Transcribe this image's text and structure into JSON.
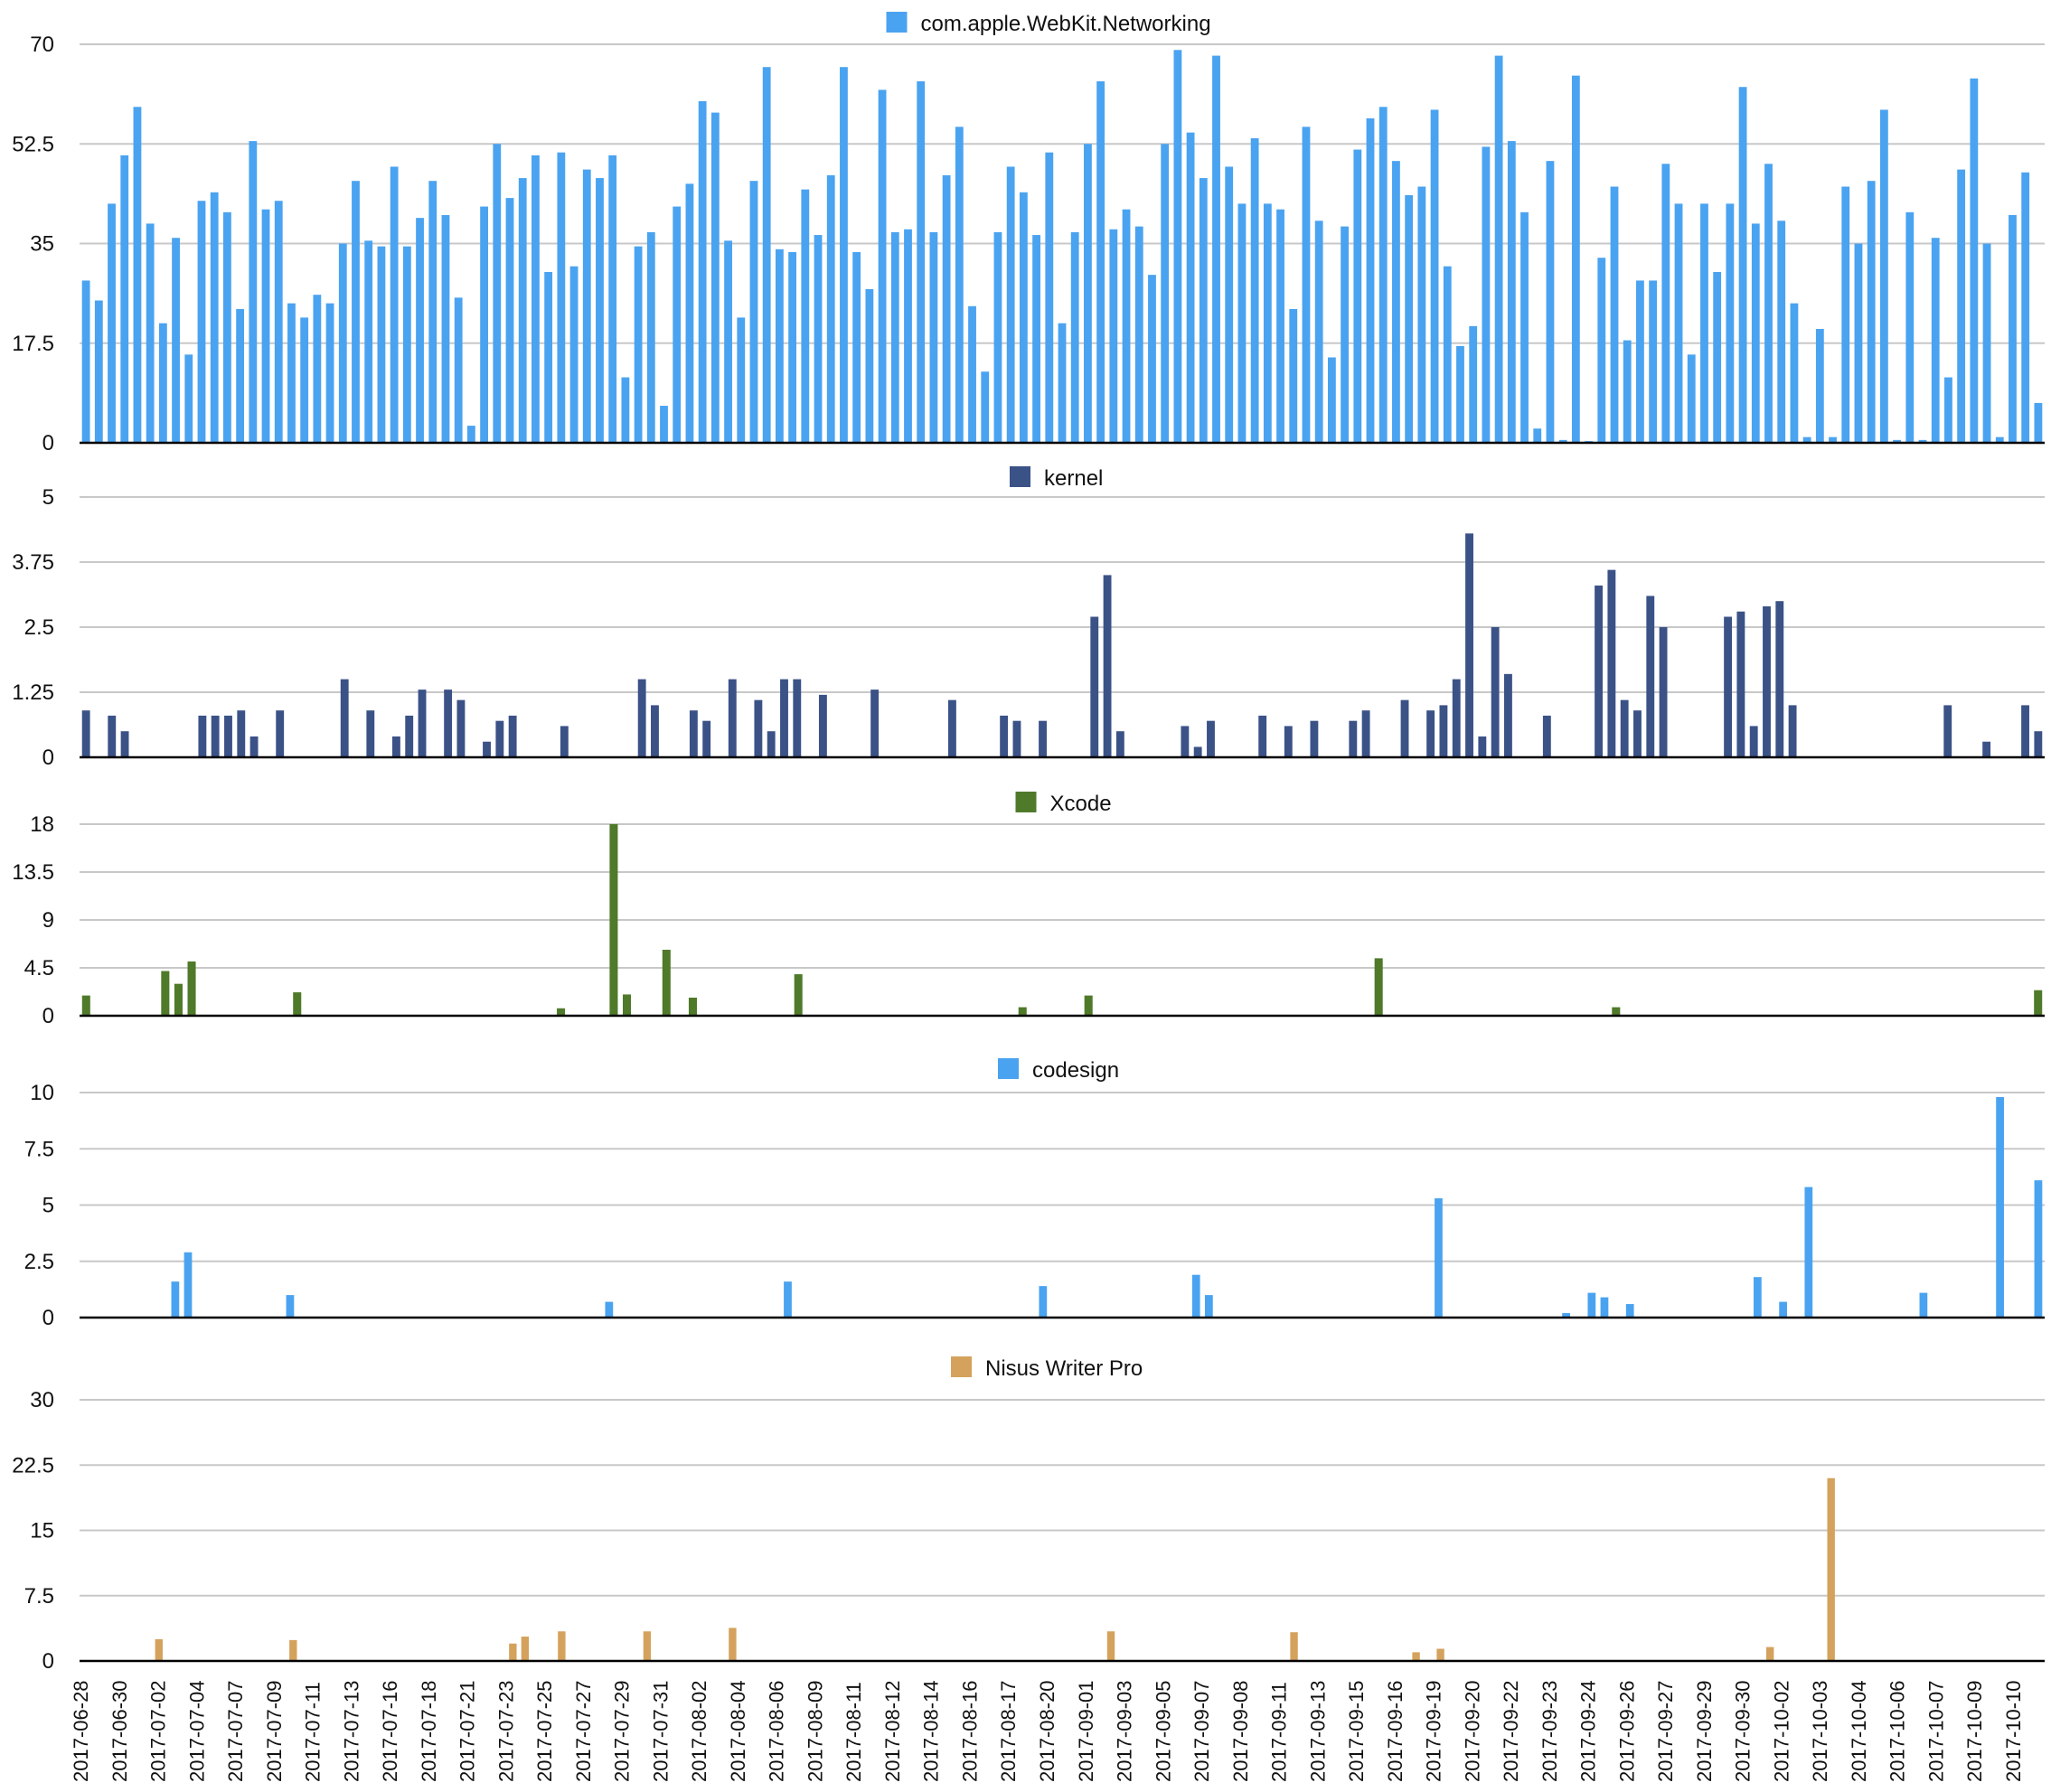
{
  "chart_data": {
    "type": "bar",
    "x_tick_labels": [
      "2017-06-28",
      "2017-06-30",
      "2017-07-02",
      "2017-07-04",
      "2017-07-07",
      "2017-07-09",
      "2017-07-11",
      "2017-07-13",
      "2017-07-16",
      "2017-07-18",
      "2017-07-21",
      "2017-07-23",
      "2017-07-25",
      "2017-07-27",
      "2017-07-29",
      "2017-07-31",
      "2017-08-02",
      "2017-08-04",
      "2017-08-06",
      "2017-08-09",
      "2017-08-11",
      "2017-08-12",
      "2017-08-14",
      "2017-08-16",
      "2017-08-17",
      "2017-08-20",
      "2017-09-01",
      "2017-09-03",
      "2017-09-05",
      "2017-09-07",
      "2017-09-08",
      "2017-09-11",
      "2017-09-13",
      "2017-09-15",
      "2017-09-16",
      "2017-09-19",
      "2017-09-20",
      "2017-09-22",
      "2017-09-23",
      "2017-09-24",
      "2017-09-26",
      "2017-09-27",
      "2017-09-29",
      "2017-09-30",
      "2017-10-02",
      "2017-10-03",
      "2017-10-04",
      "2017-10-06",
      "2017-10-07",
      "2017-10-09",
      "2017-10-10"
    ],
    "panels": [
      {
        "name": "com.apple.WebKit.Networking",
        "color": "#4aa3f0",
        "ylim": [
          0,
          70
        ],
        "yticks": [
          "0",
          "17.5",
          "35",
          "52.5",
          "70"
        ],
        "values": [
          28.5,
          25,
          42,
          50.5,
          59,
          38.5,
          21,
          36,
          15.5,
          42.5,
          44,
          40.5,
          23.5,
          53,
          41,
          42.5,
          24.5,
          22,
          26,
          24.5,
          35,
          46,
          35.5,
          34.5,
          48.5,
          34.5,
          39.5,
          46,
          40,
          25.5,
          3,
          41.5,
          52.5,
          43,
          46.5,
          50.5,
          30,
          51,
          31,
          48,
          46.5,
          50.5,
          11.5,
          34.5,
          37,
          6.5,
          41.5,
          45.5,
          60,
          58,
          35.5,
          22,
          46,
          66,
          34,
          33.5,
          44.5,
          36.5,
          47,
          66,
          33.5,
          27,
          62,
          37,
          37.5,
          63.5,
          37,
          47,
          55.5,
          24,
          12.5,
          37,
          48.5,
          44,
          36.5,
          51,
          21,
          37,
          52.5,
          63.5,
          37.5,
          41,
          38,
          29.5,
          52.5,
          69,
          54.5,
          46.5,
          68,
          48.5,
          42,
          53.5,
          42,
          41,
          23.5,
          55.5,
          39,
          15,
          38,
          51.5,
          57,
          59,
          49.5,
          43.5,
          45,
          58.5,
          31,
          17,
          20.5,
          52,
          68,
          53,
          40.5,
          2.5,
          49.5,
          0.5,
          64.5,
          0.3,
          32.5,
          45,
          18,
          28.5,
          28.5,
          49,
          42,
          15.5,
          42,
          30,
          42,
          62.5,
          38.5,
          49,
          39,
          24.5,
          1,
          20,
          1,
          45,
          35,
          46,
          58.5,
          0.5,
          40.5,
          0.5,
          36,
          11.5,
          48,
          64,
          35,
          1,
          40,
          47.5,
          7
        ]
      },
      {
        "name": "kernel",
        "color": "#3b5287",
        "ylim": [
          0,
          5
        ],
        "yticks": [
          "0",
          "1.25",
          "2.5",
          "3.75",
          "5"
        ],
        "values": [
          0.9,
          0,
          0.8,
          0.5,
          0,
          0,
          0,
          0,
          0,
          0.8,
          0.8,
          0.8,
          0.9,
          0.4,
          0,
          0.9,
          0,
          0,
          0,
          0,
          1.5,
          0,
          0.9,
          0,
          0.4,
          0.8,
          1.3,
          0,
          1.3,
          1.1,
          0,
          0.3,
          0.7,
          0.8,
          0,
          0,
          0,
          0.6,
          0,
          0,
          0,
          0,
          0,
          1.5,
          1,
          0,
          0,
          0.9,
          0.7,
          0,
          1.5,
          0,
          1.1,
          0.5,
          1.5,
          1.5,
          0,
          1.2,
          0,
          0,
          0,
          1.3,
          0,
          0,
          0,
          0,
          0,
          1.1,
          0,
          0,
          0,
          0.8,
          0.7,
          0,
          0.7,
          0,
          0,
          0,
          2.7,
          3.5,
          0.5,
          0,
          0,
          0,
          0,
          0.6,
          0.2,
          0.7,
          0,
          0,
          0,
          0.8,
          0,
          0.6,
          0,
          0.7,
          0,
          0,
          0.7,
          0.9,
          0,
          0,
          1.1,
          0,
          0.9,
          1,
          1.5,
          4.3,
          0.4,
          2.5,
          1.6,
          0,
          0,
          0.8,
          0,
          0,
          0,
          3.3,
          3.6,
          1.1,
          0.9,
          3.1,
          2.5,
          0,
          0,
          0,
          0,
          2.7,
          2.8,
          0.6,
          2.9,
          3,
          1,
          0,
          0,
          0,
          0,
          0,
          0,
          0,
          0,
          0,
          0,
          0,
          1,
          0,
          0,
          0.3,
          0,
          0,
          1,
          0.5
        ]
      },
      {
        "name": "Xcode",
        "color": "#4f7a2a",
        "ylim": [
          0,
          18
        ],
        "yticks": [
          "0",
          "4.5",
          "9",
          "13.5",
          "18"
        ],
        "values": [
          1.9,
          0,
          0,
          0,
          0,
          0,
          4.2,
          3,
          5.1,
          0,
          0,
          0,
          0,
          0,
          0,
          0,
          2.2,
          0,
          0,
          0,
          0,
          0,
          0,
          0,
          0,
          0,
          0,
          0,
          0,
          0,
          0,
          0,
          0,
          0,
          0,
          0,
          0.7,
          0,
          0,
          0,
          18,
          2,
          0,
          0,
          6.2,
          0,
          1.7,
          0,
          0,
          0,
          0,
          0,
          0,
          0,
          3.9,
          0,
          0,
          0,
          0,
          0,
          0,
          0,
          0,
          0,
          0,
          0,
          0,
          0,
          0,
          0,
          0,
          0.8,
          0,
          0,
          0,
          0,
          1.9,
          0,
          0,
          0,
          0,
          0,
          0,
          0,
          0,
          0,
          0,
          0,
          0,
          0,
          0,
          0,
          0,
          0,
          0,
          0,
          0,
          0,
          5.4,
          0,
          0,
          0,
          0,
          0,
          0,
          0,
          0,
          0,
          0,
          0,
          0,
          0,
          0,
          0,
          0,
          0,
          0.8,
          0,
          0,
          0,
          0,
          0,
          0,
          0,
          0,
          0,
          0,
          0,
          0,
          0,
          0,
          0,
          0,
          0,
          0,
          0,
          0,
          0,
          0,
          0,
          0,
          0,
          0,
          0,
          0,
          0,
          0,
          0,
          2.4
        ]
      },
      {
        "name": "codesign",
        "color": "#4aa3f0",
        "ylim": [
          0,
          10
        ],
        "yticks": [
          "0",
          "2.5",
          "5",
          "7.5",
          "10"
        ],
        "values": [
          0,
          0,
          0,
          0,
          0,
          0,
          0,
          1.6,
          2.9,
          0,
          0,
          0,
          0,
          0,
          0,
          0,
          1,
          0,
          0,
          0,
          0,
          0,
          0,
          0,
          0,
          0,
          0,
          0,
          0,
          0,
          0,
          0,
          0,
          0,
          0,
          0,
          0,
          0,
          0,
          0,
          0,
          0.7,
          0,
          0,
          0,
          0,
          0,
          0,
          0,
          0,
          0,
          0,
          0,
          0,
          0,
          1.6,
          0,
          0,
          0,
          0,
          0,
          0,
          0,
          0,
          0,
          0,
          0,
          0,
          0,
          0,
          0,
          0,
          0,
          0,
          0,
          1.4,
          0,
          0,
          0,
          0,
          0,
          0,
          0,
          0,
          0,
          0,
          0,
          1.9,
          1,
          0,
          0,
          0,
          0,
          0,
          0,
          0,
          0,
          0,
          0,
          0,
          0,
          0,
          0,
          0,
          0,
          0,
          5.3,
          0,
          0,
          0,
          0,
          0,
          0,
          0,
          0,
          0,
          0.2,
          0,
          1.1,
          0.9,
          0,
          0.6,
          0,
          0,
          0,
          0,
          0,
          0,
          0,
          0,
          0,
          1.8,
          0,
          0.7,
          0,
          5.8,
          0,
          0,
          0,
          0,
          0,
          0,
          0,
          0,
          1.1,
          0,
          0,
          0,
          0,
          0,
          9.8,
          0,
          0,
          6.1
        ]
      },
      {
        "name": "Nisus Writer Pro",
        "color": "#d4a25c",
        "ylim": [
          0,
          30
        ],
        "yticks": [
          "0",
          "7.5",
          "15",
          "22.5",
          "30"
        ],
        "values": [
          0,
          0,
          0,
          0,
          0,
          0,
          2.5,
          0,
          0,
          0,
          0,
          0,
          0,
          0,
          0,
          0,
          0,
          2.4,
          0,
          0,
          0,
          0,
          0,
          0,
          0,
          0,
          0,
          0,
          0,
          0,
          0,
          0,
          0,
          0,
          0,
          2,
          2.8,
          0,
          0,
          3.4,
          0,
          0,
          0,
          0,
          0,
          0,
          3.4,
          0,
          0,
          0,
          0,
          0,
          0,
          3.8,
          0,
          0,
          0,
          0,
          0,
          0,
          0,
          0,
          0,
          0,
          0,
          0,
          0,
          0,
          0,
          0,
          0,
          0,
          0,
          0,
          0,
          0,
          0,
          0,
          0,
          0,
          0,
          0,
          0,
          0,
          3.4,
          0,
          0,
          0,
          0,
          0,
          0,
          0,
          0,
          0,
          0,
          0,
          0,
          0,
          0,
          3.3,
          0,
          0,
          0,
          0,
          0,
          0,
          0,
          0,
          0,
          1,
          0,
          1.4,
          0,
          0,
          0,
          0,
          0,
          0,
          0,
          0,
          0,
          0,
          0,
          0,
          0,
          0,
          0,
          0,
          0,
          0,
          0,
          0,
          0,
          0,
          0,
          0,
          0,
          0,
          1.6,
          0,
          0,
          0,
          0,
          21,
          0,
          0,
          0,
          0,
          0,
          0,
          0,
          0,
          0,
          0,
          0,
          0,
          0,
          0,
          0,
          0,
          0
        ]
      }
    ]
  }
}
